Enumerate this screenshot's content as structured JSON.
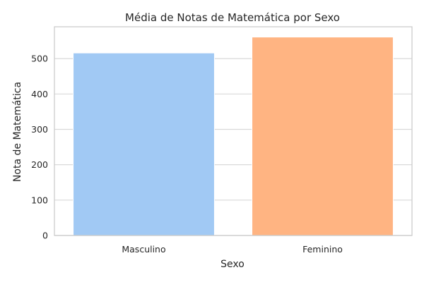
{
  "chart_data": {
    "type": "bar",
    "title": "Média de Notas de Matemática por Sexo",
    "xlabel": "Sexo",
    "ylabel": "Nota de Matemática",
    "categories": [
      "Masculino",
      "Feminino"
    ],
    "values": [
      516,
      561
    ],
    "colors": [
      "#a1c9f4",
      "#ffb482"
    ],
    "ylim": [
      0,
      590
    ],
    "yticks": [
      0,
      100,
      200,
      300,
      400,
      500
    ],
    "grid": true,
    "legend": "none"
  }
}
